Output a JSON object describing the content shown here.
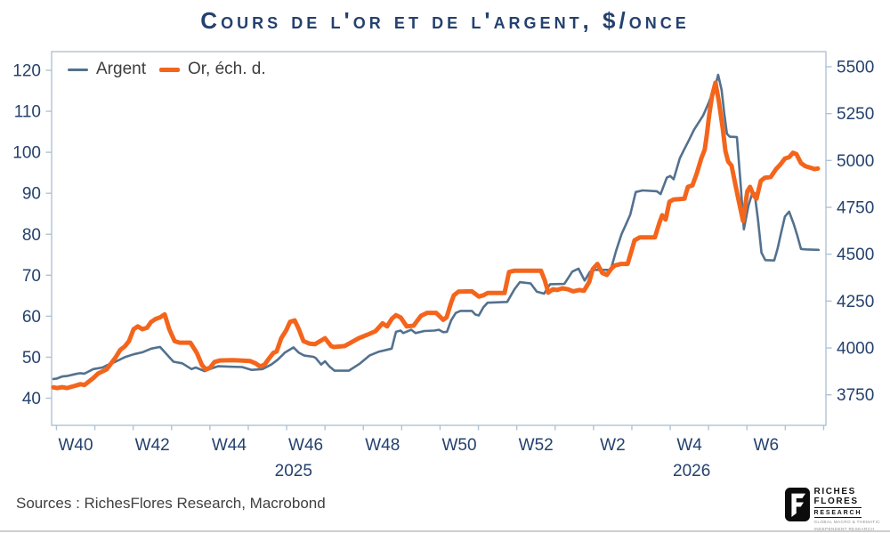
{
  "title": "Cours de l'or et de l'argent, $/once",
  "source": "Sources : RichesFlores Research, Macrobond",
  "logo": {
    "name_line1": "RICHES",
    "name_line2": "FLORES",
    "name_line3": "RESEARCH",
    "tagline_line1": "GLOBAL MACRO & THEMATIC",
    "tagline_line2": "INDEPENDENT RESEARCH"
  },
  "colors": {
    "navy_text": "#24416e",
    "frame": "#b0c3d4",
    "argent_line": "#53718e",
    "or_line": "#f4651c"
  },
  "chart_data": {
    "type": "line",
    "title": "Cours de l'or et de l'argent, $/once",
    "grid": "off",
    "legend_position": "top-left-inside",
    "x_axis": {
      "unit": "ISO week",
      "note": "weeks 40-53 belong to 2025, 54-59 represent W2-W7 2026",
      "tick_labels": [
        {
          "week": 40,
          "label": "W40"
        },
        {
          "week": 42,
          "label": "W42"
        },
        {
          "week": 44,
          "label": "W44"
        },
        {
          "week": 46,
          "label": "W46"
        },
        {
          "week": 48,
          "label": "W48"
        },
        {
          "week": 50,
          "label": "W50"
        },
        {
          "week": 52,
          "label": "W52"
        },
        {
          "week": 54,
          "label": "W2"
        },
        {
          "week": 56,
          "label": "W4"
        },
        {
          "week": 58,
          "label": "W6"
        }
      ],
      "minor_tick_week_start": 39.5,
      "minor_tick_week_end": 59.5,
      "year_labels": [
        {
          "week": 45.68,
          "label": "2025"
        },
        {
          "week": 56.06,
          "label": "2026"
        }
      ]
    },
    "left_axis": {
      "series": "Argent",
      "min": 40,
      "max": 120,
      "ticks": [
        120,
        110,
        100,
        90,
        80,
        70,
        60,
        50,
        40
      ]
    },
    "right_axis": {
      "series": "Or, éch. d.",
      "min": 3750,
      "max": 5500,
      "ticks": [
        5500,
        5250,
        5000,
        4750,
        4500,
        4250,
        4000,
        3750
      ]
    },
    "series": [
      {
        "name": "Argent",
        "axis": "left",
        "color": "#53718e",
        "stroke_width": 2.6,
        "points": [
          [
            39.42,
            44.7
          ],
          [
            39.51,
            44.8
          ],
          [
            39.65,
            45.3
          ],
          [
            39.77,
            45.4
          ],
          [
            40.0,
            45.9
          ],
          [
            40.12,
            46.1
          ],
          [
            40.23,
            46.0
          ],
          [
            40.46,
            47.1
          ],
          [
            40.7,
            47.5
          ],
          [
            40.81,
            48.0
          ],
          [
            41.04,
            48.9
          ],
          [
            41.28,
            50.0
          ],
          [
            41.51,
            50.7
          ],
          [
            41.74,
            51.2
          ],
          [
            41.97,
            52.1
          ],
          [
            42.2,
            52.5
          ],
          [
            42.44,
            50.0
          ],
          [
            42.55,
            48.9
          ],
          [
            42.78,
            48.5
          ],
          [
            43.02,
            47.1
          ],
          [
            43.13,
            47.5
          ],
          [
            43.36,
            46.6
          ],
          [
            43.53,
            47.2
          ],
          [
            43.71,
            47.8
          ],
          [
            44.34,
            47.6
          ],
          [
            44.59,
            46.9
          ],
          [
            44.87,
            47.1
          ],
          [
            45.1,
            48.2
          ],
          [
            45.27,
            49.4
          ],
          [
            45.45,
            51.1
          ],
          [
            45.68,
            52.4
          ],
          [
            45.82,
            51.1
          ],
          [
            45.96,
            50.4
          ],
          [
            46.2,
            50.1
          ],
          [
            46.26,
            49.8
          ],
          [
            46.4,
            48.2
          ],
          [
            46.5,
            49.0
          ],
          [
            46.61,
            47.8
          ],
          [
            46.75,
            46.7
          ],
          [
            47.12,
            46.7
          ],
          [
            47.42,
            48.5
          ],
          [
            47.66,
            50.4
          ],
          [
            47.89,
            51.3
          ],
          [
            48.24,
            52.1
          ],
          [
            48.35,
            56.2
          ],
          [
            48.47,
            56.5
          ],
          [
            48.54,
            55.9
          ],
          [
            48.75,
            56.7
          ],
          [
            48.86,
            55.9
          ],
          [
            49.09,
            56.4
          ],
          [
            49.35,
            56.5
          ],
          [
            49.47,
            56.7
          ],
          [
            49.58,
            56.1
          ],
          [
            49.68,
            56.2
          ],
          [
            49.79,
            59.0
          ],
          [
            49.91,
            60.8
          ],
          [
            50.03,
            61.3
          ],
          [
            50.33,
            61.3
          ],
          [
            50.42,
            60.4
          ],
          [
            50.51,
            60.2
          ],
          [
            50.63,
            62.2
          ],
          [
            50.74,
            63.3
          ],
          [
            51.25,
            63.5
          ],
          [
            51.44,
            66.6
          ],
          [
            51.58,
            68.3
          ],
          [
            51.86,
            68.0
          ],
          [
            52.02,
            66.0
          ],
          [
            52.21,
            65.5
          ],
          [
            52.37,
            67.8
          ],
          [
            52.74,
            67.9
          ],
          [
            52.95,
            70.9
          ],
          [
            53.11,
            71.6
          ],
          [
            53.27,
            68.7
          ],
          [
            53.41,
            70.9
          ],
          [
            53.53,
            71.3
          ],
          [
            53.95,
            71.3
          ],
          [
            54.09,
            76.0
          ],
          [
            54.23,
            80.0
          ],
          [
            54.34,
            82.3
          ],
          [
            54.46,
            84.8
          ],
          [
            54.6,
            90.3
          ],
          [
            54.78,
            90.7
          ],
          [
            55.15,
            90.5
          ],
          [
            55.25,
            89.8
          ],
          [
            55.41,
            93.8
          ],
          [
            55.5,
            94.2
          ],
          [
            55.59,
            93.4
          ],
          [
            55.75,
            98.5
          ],
          [
            55.87,
            100.8
          ],
          [
            55.99,
            103.0
          ],
          [
            56.12,
            105.5
          ],
          [
            56.36,
            109.0
          ],
          [
            56.49,
            111.8
          ],
          [
            56.54,
            113.0
          ],
          [
            56.64,
            114.8
          ],
          [
            56.75,
            118.9
          ],
          [
            56.84,
            115.2
          ],
          [
            56.91,
            109.4
          ],
          [
            56.98,
            104.5
          ],
          [
            57.05,
            103.8
          ],
          [
            57.24,
            103.7
          ],
          [
            57.33,
            93.0
          ],
          [
            57.42,
            81.2
          ],
          [
            57.54,
            87.0
          ],
          [
            57.63,
            89.8
          ],
          [
            57.7,
            90.0
          ],
          [
            57.79,
            83.5
          ],
          [
            57.88,
            75.5
          ],
          [
            57.98,
            73.7
          ],
          [
            58.21,
            73.6
          ],
          [
            58.3,
            76.5
          ],
          [
            58.39,
            80.3
          ],
          [
            58.49,
            84.3
          ],
          [
            58.6,
            85.5
          ],
          [
            58.72,
            82.5
          ],
          [
            58.81,
            79.8
          ],
          [
            58.91,
            76.4
          ],
          [
            59.04,
            76.3
          ],
          [
            59.37,
            76.2
          ]
        ]
      },
      {
        "name": "Or, éch. d.",
        "axis": "right",
        "color": "#f4651c",
        "stroke_width": 5,
        "points": [
          [
            39.42,
            3790
          ],
          [
            39.51,
            3786
          ],
          [
            39.65,
            3791
          ],
          [
            39.77,
            3786
          ],
          [
            40.0,
            3799
          ],
          [
            40.12,
            3807
          ],
          [
            40.23,
            3802
          ],
          [
            40.46,
            3839
          ],
          [
            40.58,
            3863
          ],
          [
            40.7,
            3875
          ],
          [
            40.81,
            3886
          ],
          [
            41.04,
            3949
          ],
          [
            41.16,
            3989
          ],
          [
            41.28,
            4008
          ],
          [
            41.39,
            4036
          ],
          [
            41.51,
            4100
          ],
          [
            41.62,
            4115
          ],
          [
            41.74,
            4100
          ],
          [
            41.86,
            4108
          ],
          [
            41.97,
            4139
          ],
          [
            42.09,
            4155
          ],
          [
            42.2,
            4163
          ],
          [
            42.32,
            4179
          ],
          [
            42.44,
            4100
          ],
          [
            42.58,
            4036
          ],
          [
            42.71,
            4028
          ],
          [
            42.99,
            4028
          ],
          [
            43.16,
            3973
          ],
          [
            43.29,
            3910
          ],
          [
            43.39,
            3886
          ],
          [
            43.5,
            3894
          ],
          [
            43.62,
            3925
          ],
          [
            43.76,
            3933
          ],
          [
            44.11,
            3935
          ],
          [
            44.29,
            3933
          ],
          [
            44.55,
            3930
          ],
          [
            44.69,
            3918
          ],
          [
            44.8,
            3902
          ],
          [
            44.92,
            3910
          ],
          [
            45.03,
            3941
          ],
          [
            45.15,
            3973
          ],
          [
            45.24,
            3981
          ],
          [
            45.36,
            4052
          ],
          [
            45.48,
            4091
          ],
          [
            45.59,
            4139
          ],
          [
            45.71,
            4147
          ],
          [
            45.82,
            4100
          ],
          [
            45.94,
            4036
          ],
          [
            46.1,
            4023
          ],
          [
            46.24,
            4020
          ],
          [
            46.5,
            4052
          ],
          [
            46.66,
            4010
          ],
          [
            46.73,
            4005
          ],
          [
            47.01,
            4010
          ],
          [
            47.38,
            4052
          ],
          [
            47.61,
            4071
          ],
          [
            47.82,
            4090
          ],
          [
            48.0,
            4131
          ],
          [
            48.12,
            4115
          ],
          [
            48.24,
            4155
          ],
          [
            48.35,
            4175
          ],
          [
            48.47,
            4163
          ],
          [
            48.63,
            4115
          ],
          [
            48.81,
            4119
          ],
          [
            49.0,
            4171
          ],
          [
            49.16,
            4187
          ],
          [
            49.4,
            4187
          ],
          [
            49.58,
            4150
          ],
          [
            49.67,
            4163
          ],
          [
            49.79,
            4242
          ],
          [
            49.86,
            4281
          ],
          [
            49.98,
            4300
          ],
          [
            50.33,
            4302
          ],
          [
            50.51,
            4274
          ],
          [
            50.63,
            4281
          ],
          [
            50.74,
            4293
          ],
          [
            51.18,
            4293
          ],
          [
            51.3,
            4405
          ],
          [
            51.44,
            4412
          ],
          [
            52.13,
            4412
          ],
          [
            52.23,
            4361
          ],
          [
            52.32,
            4295
          ],
          [
            52.44,
            4313
          ],
          [
            52.55,
            4309
          ],
          [
            52.69,
            4318
          ],
          [
            52.83,
            4313
          ],
          [
            52.97,
            4302
          ],
          [
            53.13,
            4309
          ],
          [
            53.25,
            4305
          ],
          [
            53.39,
            4353
          ],
          [
            53.48,
            4420
          ],
          [
            53.6,
            4448
          ],
          [
            53.73,
            4400
          ],
          [
            53.85,
            4390
          ],
          [
            53.97,
            4424
          ],
          [
            54.06,
            4440
          ],
          [
            54.22,
            4448
          ],
          [
            54.39,
            4448
          ],
          [
            54.48,
            4511
          ],
          [
            54.57,
            4574
          ],
          [
            54.71,
            4590
          ],
          [
            55.1,
            4590
          ],
          [
            55.22,
            4669
          ],
          [
            55.29,
            4708
          ],
          [
            55.38,
            4685
          ],
          [
            55.48,
            4780
          ],
          [
            55.59,
            4792
          ],
          [
            55.87,
            4796
          ],
          [
            55.96,
            4859
          ],
          [
            56.08,
            4867
          ],
          [
            56.19,
            4930
          ],
          [
            56.31,
            5011
          ],
          [
            56.4,
            5058
          ],
          [
            56.45,
            5130
          ],
          [
            56.52,
            5248
          ],
          [
            56.59,
            5343
          ],
          [
            56.68,
            5415
          ],
          [
            56.77,
            5312
          ],
          [
            56.87,
            5169
          ],
          [
            56.94,
            5050
          ],
          [
            57.01,
            4995
          ],
          [
            57.1,
            4972
          ],
          [
            57.19,
            4880
          ],
          [
            57.28,
            4790
          ],
          [
            57.4,
            4677
          ],
          [
            57.51,
            4836
          ],
          [
            57.58,
            4859
          ],
          [
            57.68,
            4812
          ],
          [
            57.75,
            4796
          ],
          [
            57.86,
            4891
          ],
          [
            57.96,
            4907
          ],
          [
            58.12,
            4912
          ],
          [
            58.26,
            4954
          ],
          [
            58.37,
            4978
          ],
          [
            58.49,
            5010
          ],
          [
            58.6,
            5018
          ],
          [
            58.7,
            5041
          ],
          [
            58.79,
            5034
          ],
          [
            58.91,
            4986
          ],
          [
            59.02,
            4970
          ],
          [
            59.14,
            4962
          ],
          [
            59.26,
            4954
          ],
          [
            59.35,
            4957
          ]
        ]
      }
    ]
  }
}
